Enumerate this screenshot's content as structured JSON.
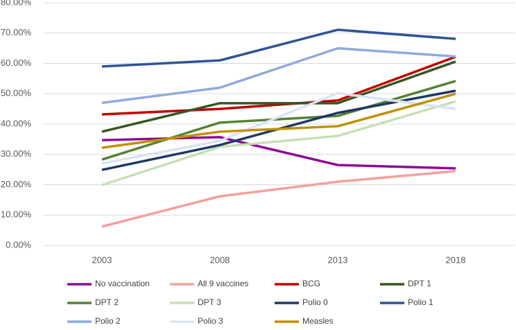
{
  "chart_data": {
    "type": "line",
    "categories": [
      "2003",
      "2008",
      "2013",
      "2018"
    ],
    "ylim": [
      0,
      80
    ],
    "yticks": [
      {
        "value": 0,
        "label": "0.00%"
      },
      {
        "value": 10,
        "label": "10.00%"
      },
      {
        "value": 20,
        "label": "20.00%"
      },
      {
        "value": 30,
        "label": "30.00%"
      },
      {
        "value": 40,
        "label": "40.00%"
      },
      {
        "value": 50,
        "label": "50.00%"
      },
      {
        "value": 60,
        "label": "60.00%"
      },
      {
        "value": 70,
        "label": "70.00%"
      },
      {
        "value": 80,
        "label": "80.00%"
      }
    ],
    "grid": true,
    "series": [
      {
        "name": "No vaccination",
        "color": "#8e0a99",
        "values": [
          34.7,
          35.7,
          26.5,
          25.4
        ]
      },
      {
        "name": "All 9 vaccines",
        "color": "#f4a09c",
        "values": [
          6.2,
          16.2,
          21.0,
          24.5
        ]
      },
      {
        "name": "BCG",
        "color": "#c00000",
        "values": [
          43.2,
          45.0,
          47.8,
          62.2
        ]
      },
      {
        "name": "DPT 1",
        "color": "#375623",
        "values": [
          37.5,
          46.9,
          46.9,
          60.6
        ]
      },
      {
        "name": "DPT 2",
        "color": "#548235",
        "values": [
          28.3,
          40.5,
          42.7,
          54.2
        ]
      },
      {
        "name": "DPT 3",
        "color": "#c5e0b4",
        "values": [
          19.9,
          32.5,
          36.1,
          47.5
        ]
      },
      {
        "name": "Polio 0",
        "color": "#1f3864",
        "values": [
          24.9,
          33.1,
          43.7,
          51.0
        ]
      },
      {
        "name": "Polio 1",
        "color": "#2f5597",
        "values": [
          59.0,
          61.0,
          71.1,
          68.1
        ]
      },
      {
        "name": "Polio 2",
        "color": "#8faadc",
        "values": [
          47.0,
          52.0,
          65.0,
          62.3
        ]
      },
      {
        "name": "Polio 3",
        "color": "#dae3f3",
        "values": [
          27.0,
          34.5,
          50.2,
          45.0
        ]
      },
      {
        "name": "Measles",
        "color": "#bf9000",
        "values": [
          32.2,
          37.5,
          39.3,
          50.0
        ]
      }
    ]
  }
}
